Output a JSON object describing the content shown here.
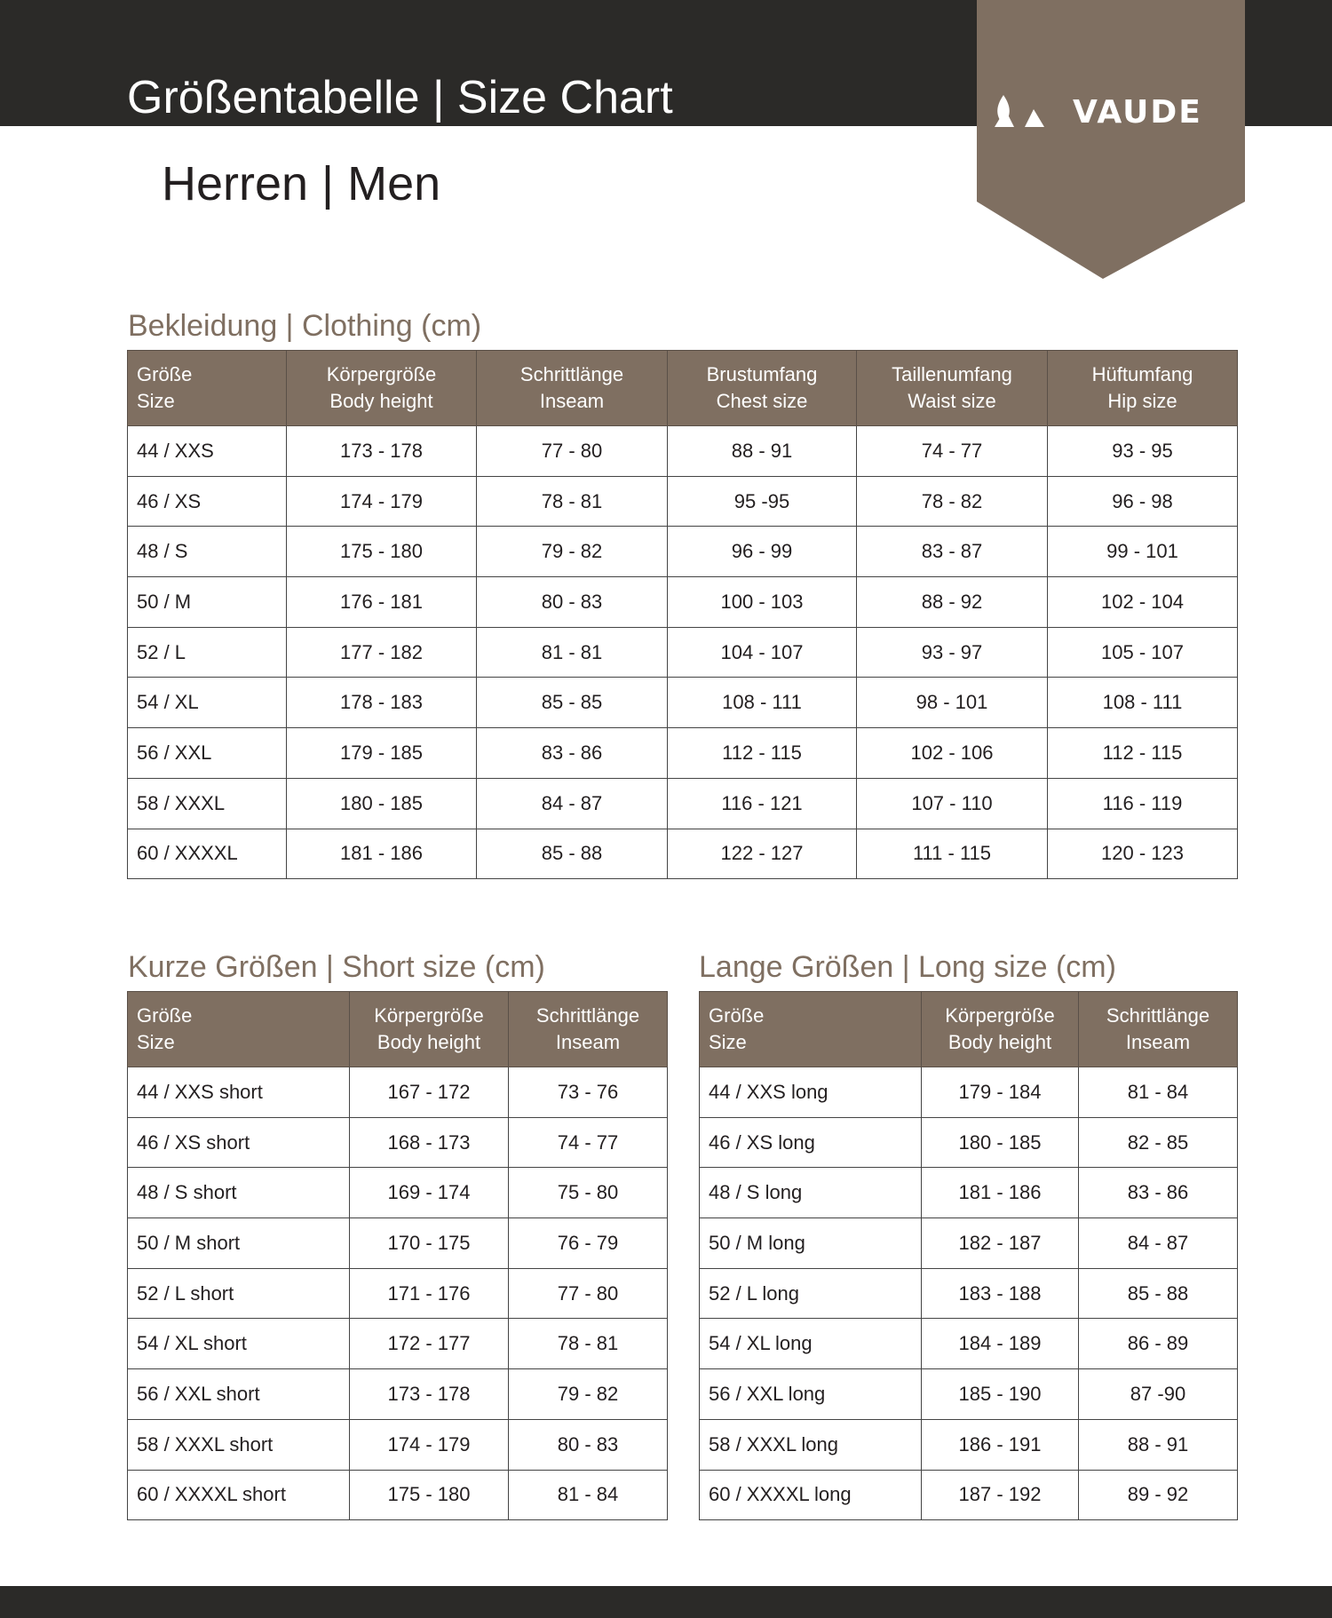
{
  "header": {
    "title": "Größentabelle | Size Chart",
    "subtitle": "Herren | Men",
    "logo_text": "VAUDE",
    "colors": {
      "dark": "#2b2a28",
      "brand_brown": "#7f6f61"
    }
  },
  "clothing": {
    "title": "Bekleidung | Clothing (cm)",
    "headers": [
      [
        "Größe",
        "Size"
      ],
      [
        "Körpergröße",
        "Body height"
      ],
      [
        "Schrittlänge",
        "Inseam"
      ],
      [
        "Brustumfang",
        "Chest size"
      ],
      [
        "Taillenumfang",
        "Waist size"
      ],
      [
        "Hüftumfang",
        "Hip size"
      ]
    ],
    "rows": [
      [
        "44 / XXS",
        "173 - 178",
        "77 - 80",
        "88 - 91",
        "74 - 77",
        "93 - 95"
      ],
      [
        "46 / XS",
        "174 - 179",
        "78 - 81",
        "95 -95",
        "78 - 82",
        "96 - 98"
      ],
      [
        "48 / S",
        "175 - 180",
        "79 - 82",
        "96 - 99",
        "83 - 87",
        "99 - 101"
      ],
      [
        "50 / M",
        "176 - 181",
        "80 - 83",
        "100 - 103",
        "88 - 92",
        "102 - 104"
      ],
      [
        "52 / L",
        "177 - 182",
        "81 - 81",
        "104 - 107",
        "93 - 97",
        "105 - 107"
      ],
      [
        "54 / XL",
        "178 - 183",
        "85 - 85",
        "108 - 111",
        "98 - 101",
        "108 - 111"
      ],
      [
        "56 / XXL",
        "179 - 185",
        "83 - 86",
        "112 - 115",
        "102 - 106",
        "112 - 115"
      ],
      [
        "58 / XXXL",
        "180 - 185",
        "84 - 87",
        "116 - 121",
        "107 - 110",
        "116 - 119"
      ],
      [
        "60 / XXXXL",
        "181 - 186",
        "85 - 88",
        "122 - 127",
        "111 - 115",
        "120 - 123"
      ]
    ]
  },
  "short": {
    "title": "Kurze Größen | Short size (cm)",
    "headers": [
      [
        "Größe",
        "Size"
      ],
      [
        "Körpergröße",
        "Body height"
      ],
      [
        "Schrittlänge",
        "Inseam"
      ]
    ],
    "rows": [
      [
        "44 / XXS short",
        "167 - 172",
        "73 - 76"
      ],
      [
        "46 / XS short",
        "168 - 173",
        "74 - 77"
      ],
      [
        "48 / S short",
        "169 - 174",
        "75 - 80"
      ],
      [
        "50 / M short",
        "170 - 175",
        "76 - 79"
      ],
      [
        "52 / L short",
        "171 - 176",
        "77 - 80"
      ],
      [
        "54 / XL short",
        "172 - 177",
        "78 - 81"
      ],
      [
        "56 / XXL short",
        "173 - 178",
        "79 - 82"
      ],
      [
        "58 / XXXL short",
        "174 - 179",
        "80 - 83"
      ],
      [
        "60 / XXXXL short",
        "175 - 180",
        "81 - 84"
      ]
    ]
  },
  "long": {
    "title": "Lange Größen | Long size (cm)",
    "headers": [
      [
        "Größe",
        "Size"
      ],
      [
        "Körpergröße",
        "Body height"
      ],
      [
        "Schrittlänge",
        "Inseam"
      ]
    ],
    "rows": [
      [
        "44 / XXS long",
        "179 - 184",
        "81 - 84"
      ],
      [
        "46 / XS long",
        "180 - 185",
        "82 - 85"
      ],
      [
        "48 / S long",
        "181 - 186",
        "83 - 86"
      ],
      [
        "50 / M long",
        "182 - 187",
        "84 - 87"
      ],
      [
        "52 / L long",
        "183 - 188",
        "85 - 88"
      ],
      [
        "54 / XL long",
        "184 - 189",
        "86 - 89"
      ],
      [
        "56 / XXL long",
        "185 - 190",
        "87  -90"
      ],
      [
        "58 / XXXL long",
        "186 - 191",
        "88 - 91"
      ],
      [
        "60 / XXXXL long",
        "187 - 192",
        "89 - 92"
      ]
    ]
  }
}
